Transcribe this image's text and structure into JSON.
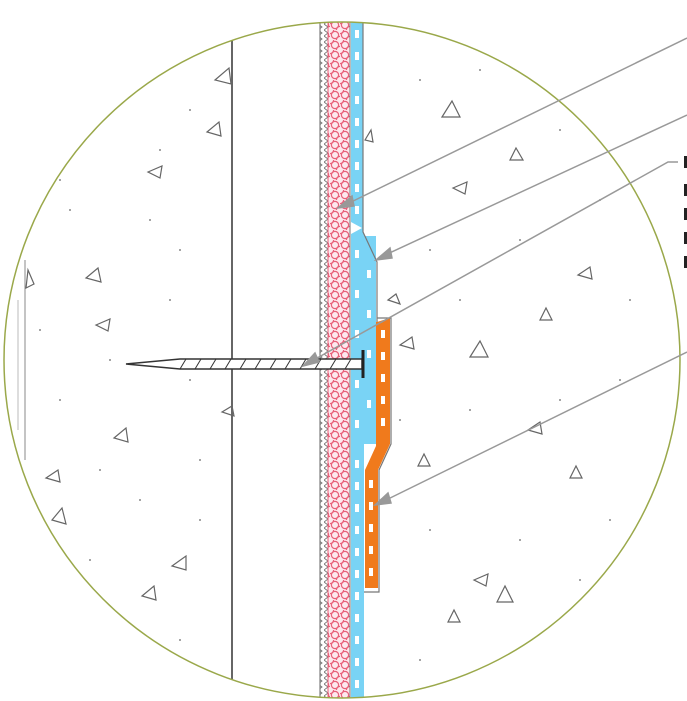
{
  "diagram": {
    "colors": {
      "detail_circle": "#9aa84a",
      "concrete_hatch": "#888888",
      "insulation": "#e8607a",
      "waterproofing_membrane": "#79d3f5",
      "reinforcement_strip": "#f07a1c",
      "leader_lines": "#999999",
      "mechanical_fastener": "#333333"
    },
    "callout_labels": [
      "",
      "",
      "",
      "",
      "",
      ""
    ],
    "components": [
      {
        "id": "concrete-wall",
        "kind": "structure"
      },
      {
        "id": "insulation-board",
        "kind": "layer"
      },
      {
        "id": "waterproofing-membrane",
        "kind": "layer"
      },
      {
        "id": "reinforcement-strip",
        "kind": "layer"
      },
      {
        "id": "mechanical-fastener",
        "kind": "fixing"
      },
      {
        "id": "protection-layer",
        "kind": "structure"
      }
    ]
  }
}
